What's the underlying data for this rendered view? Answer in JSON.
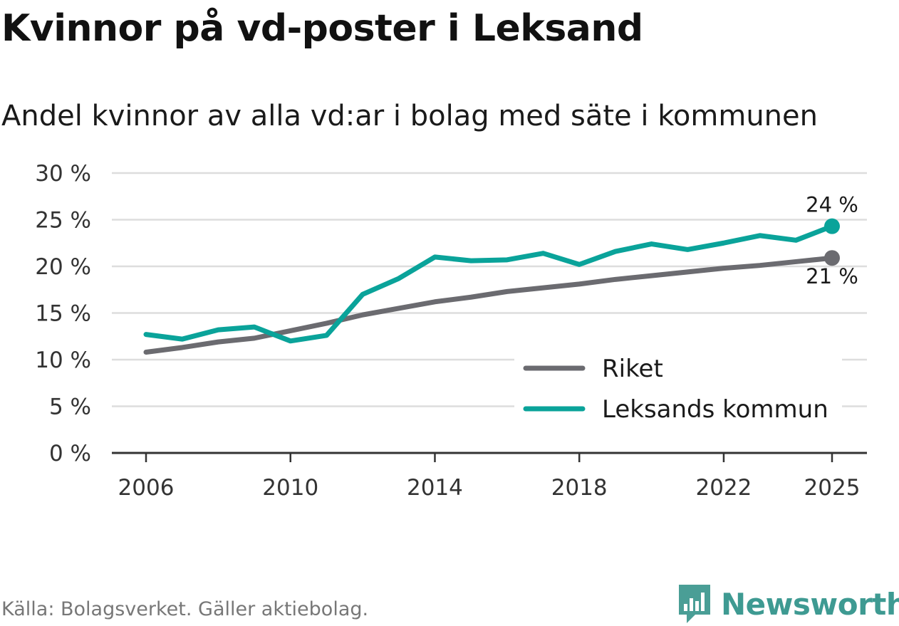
{
  "title": "Kvinnor på vd-poster i Leksand",
  "subtitle": "Andel kvinnor av alla vd:ar i bolag med säte i kommunen",
  "source": "Källa: Bolagsverket. Gäller aktiebolag.",
  "brand": {
    "name": "Newsworthy",
    "icon": "bar-chart-logo-icon",
    "color": "#4a9e96"
  },
  "chart_data": {
    "type": "line",
    "title": "Kvinnor på vd-poster i Leksand",
    "subtitle": "Andel kvinnor av alla vd:ar i bolag med säte i kommunen",
    "xlabel": "",
    "ylabel": "",
    "x": [
      2006,
      2007,
      2008,
      2009,
      2010,
      2011,
      2012,
      2013,
      2014,
      2015,
      2016,
      2017,
      2018,
      2019,
      2020,
      2021,
      2022,
      2023,
      2024,
      2025
    ],
    "x_ticks": [
      2006,
      2010,
      2014,
      2018,
      2022,
      2025
    ],
    "x_tick_labels": [
      "2006",
      "2010",
      "2014",
      "2018",
      "2022",
      "2025"
    ],
    "ylim": [
      0,
      30
    ],
    "y_ticks": [
      0,
      5,
      10,
      15,
      20,
      25,
      30
    ],
    "y_tick_labels": [
      "0 %",
      "5 %",
      "10 %",
      "15 %",
      "20 %",
      "25 %",
      "30 %"
    ],
    "grid": true,
    "legend_position": "bottom-right",
    "series": [
      {
        "name": "Riket",
        "color": "#6b6b70",
        "values": [
          10.8,
          11.3,
          11.9,
          12.3,
          13.1,
          13.9,
          14.8,
          15.5,
          16.2,
          16.7,
          17.3,
          17.7,
          18.1,
          18.6,
          19.0,
          19.4,
          19.8,
          20.1,
          20.5,
          20.9
        ],
        "end_label": "21 %"
      },
      {
        "name": "Leksands kommun",
        "color": "#0aa39a",
        "values": [
          12.7,
          12.2,
          13.2,
          13.5,
          12.0,
          12.6,
          17.0,
          18.7,
          21.0,
          20.6,
          20.7,
          21.4,
          20.2,
          21.6,
          22.4,
          21.8,
          22.5,
          23.3,
          22.8,
          24.3
        ],
        "end_label": "24 %"
      }
    ]
  }
}
